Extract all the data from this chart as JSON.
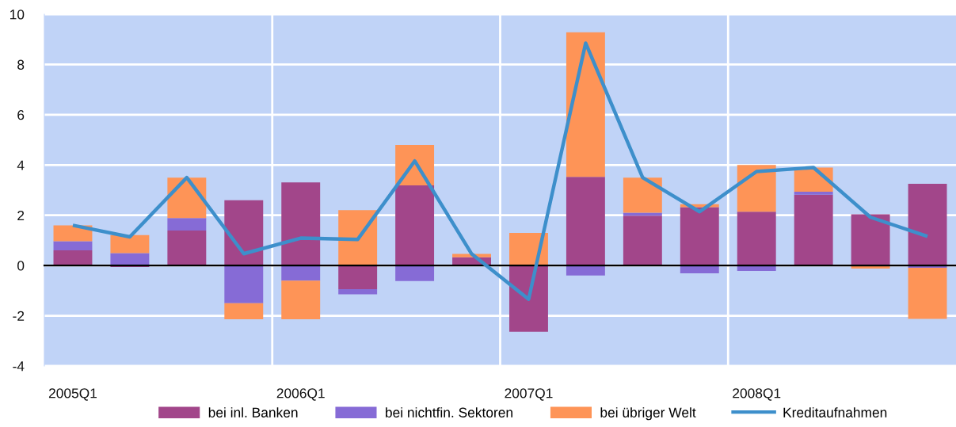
{
  "chart_data": {
    "type": "bar",
    "stacked": true,
    "categories": [
      "2005Q1",
      null,
      null,
      null,
      "2006Q1",
      null,
      null,
      null,
      "2007Q1",
      null,
      null,
      null,
      "2008Q1",
      null,
      null,
      null
    ],
    "series": [
      {
        "name": "bei inl. Banken",
        "color": "#a2468a",
        "values": [
          0.6,
          -0.06,
          1.39,
          2.6,
          3.31,
          -0.94,
          3.19,
          0.33,
          -2.64,
          3.53,
          1.98,
          2.32,
          2.14,
          2.82,
          2.04,
          3.25
        ]
      },
      {
        "name": "bei nichtfin. Sektoren",
        "color": "#866bd6",
        "values": [
          0.37,
          0.49,
          0.5,
          -1.5,
          -0.6,
          -0.21,
          -0.62,
          null,
          null,
          -0.4,
          0.12,
          -0.31,
          -0.22,
          0.12,
          null,
          -0.09
        ]
      },
      {
        "name": "bei übriger Welt",
        "color": "#fe9457",
        "values": [
          0.63,
          0.72,
          1.61,
          -0.64,
          -1.54,
          2.2,
          1.61,
          0.13,
          1.3,
          5.75,
          1.4,
          0.12,
          1.86,
          0.96,
          -0.12,
          -2.03
        ]
      },
      {
        "name": "Kreditaufnahmen",
        "type": "line",
        "color": "#3d8fcb",
        "values": [
          1.6,
          1.14,
          3.5,
          0.47,
          1.09,
          1.04,
          4.16,
          0.46,
          -1.34,
          8.85,
          3.5,
          2.14,
          3.74,
          3.9,
          1.92,
          1.16
        ]
      }
    ],
    "ylim": [
      -4,
      10
    ],
    "yticks": [
      -4,
      -2,
      0,
      2,
      4,
      6,
      8,
      10
    ],
    "grid": true,
    "legend": "bottom",
    "marker": "none",
    "line_style": "solid"
  }
}
